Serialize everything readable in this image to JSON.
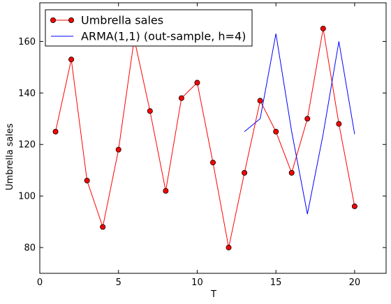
{
  "chart_data": {
    "type": "line",
    "xlabel": "T",
    "ylabel": "Umbrella sales",
    "xlim": [
      0,
      22
    ],
    "ylim": [
      70,
      175
    ],
    "xticks": [
      0,
      5,
      10,
      15,
      20
    ],
    "yticks": [
      80,
      100,
      120,
      140,
      160
    ],
    "grid": false,
    "legend_position": "top-left",
    "series": [
      {
        "name": "Umbrella sales",
        "color": "#ff0000",
        "marker": "circle",
        "x": [
          1,
          2,
          3,
          4,
          5,
          6,
          7,
          8,
          9,
          10,
          11,
          12,
          13,
          14,
          15,
          16,
          17,
          18,
          19,
          20
        ],
        "y": [
          125,
          153,
          106,
          88,
          118,
          161,
          133,
          102,
          138,
          144,
          113,
          80,
          109,
          137,
          125,
          109,
          130,
          165,
          128,
          96
        ]
      },
      {
        "name": "ARMA(1,1) (out-sample, h=4)",
        "color": "#0000ff",
        "marker": "none",
        "x": [
          13,
          14,
          15,
          16,
          17,
          18,
          19,
          20
        ],
        "y": [
          125,
          130,
          163,
          125,
          93,
          124,
          160,
          124
        ]
      }
    ]
  }
}
